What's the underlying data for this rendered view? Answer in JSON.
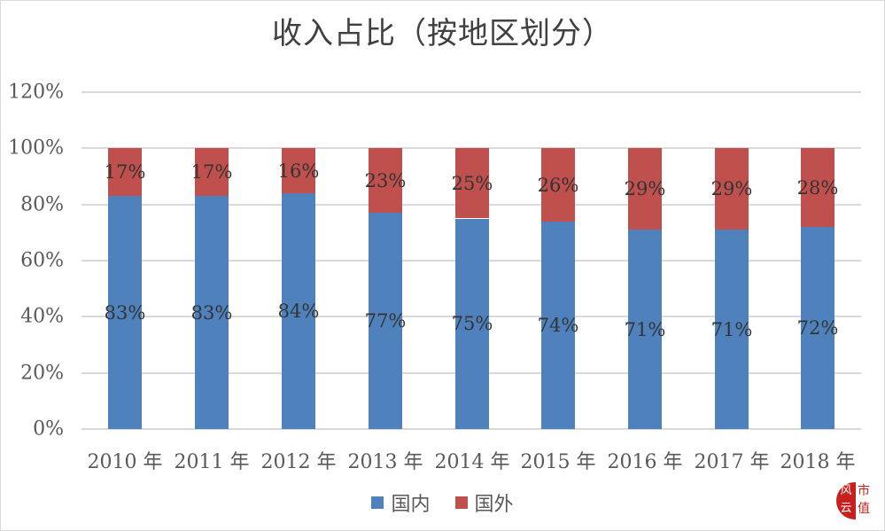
{
  "title": "收入占比（按地区划分）",
  "colors": {
    "domestic": "#4f81bd",
    "foreign": "#c0504d",
    "grid": "#d9d9d9"
  },
  "yticks": [
    "120%",
    "100%",
    "80%",
    "60%",
    "40%",
    "20%",
    "0%"
  ],
  "legend": [
    {
      "name": "国内",
      "color": "#4f81bd"
    },
    {
      "name": "国外",
      "color": "#c0504d"
    }
  ],
  "xticks": [
    "2010 年",
    "2011 年",
    "2012 年",
    "2013 年",
    "2014 年",
    "2015 年",
    "2016 年",
    "2017 年",
    "2018 年"
  ],
  "bars": [
    {
      "domestic_label": "83%",
      "foreign_label": "17%"
    },
    {
      "domestic_label": "83%",
      "foreign_label": "17%"
    },
    {
      "domestic_label": "84%",
      "foreign_label": "16%"
    },
    {
      "domestic_label": "77%",
      "foreign_label": "23%"
    },
    {
      "domestic_label": "75%",
      "foreign_label": "25%"
    },
    {
      "domestic_label": "74%",
      "foreign_label": "26%"
    },
    {
      "domestic_label": "71%",
      "foreign_label": "29%"
    },
    {
      "domestic_label": "71%",
      "foreign_label": "29%"
    },
    {
      "domestic_label": "72%",
      "foreign_label": "28%"
    }
  ],
  "logo": {
    "mark": "风云",
    "text": "市值"
  },
  "chart_data": {
    "type": "bar",
    "stacked": true,
    "title": "收入占比（按地区划分）",
    "xlabel": "",
    "ylabel": "",
    "ylim": [
      0,
      120
    ],
    "yticks": [
      "0%",
      "20%",
      "40%",
      "60%",
      "80%",
      "100%",
      "120%"
    ],
    "grid": true,
    "legend_position": "bottom",
    "categories": [
      "2010 年",
      "2011 年",
      "2012 年",
      "2013 年",
      "2014 年",
      "2015 年",
      "2016 年",
      "2017 年",
      "2018 年"
    ],
    "series": [
      {
        "name": "国内",
        "color": "#4f81bd",
        "values": [
          83,
          83,
          84,
          77,
          75,
          74,
          71,
          71,
          72
        ]
      },
      {
        "name": "国外",
        "color": "#c0504d",
        "values": [
          17,
          17,
          16,
          23,
          25,
          26,
          29,
          29,
          28
        ]
      }
    ]
  }
}
